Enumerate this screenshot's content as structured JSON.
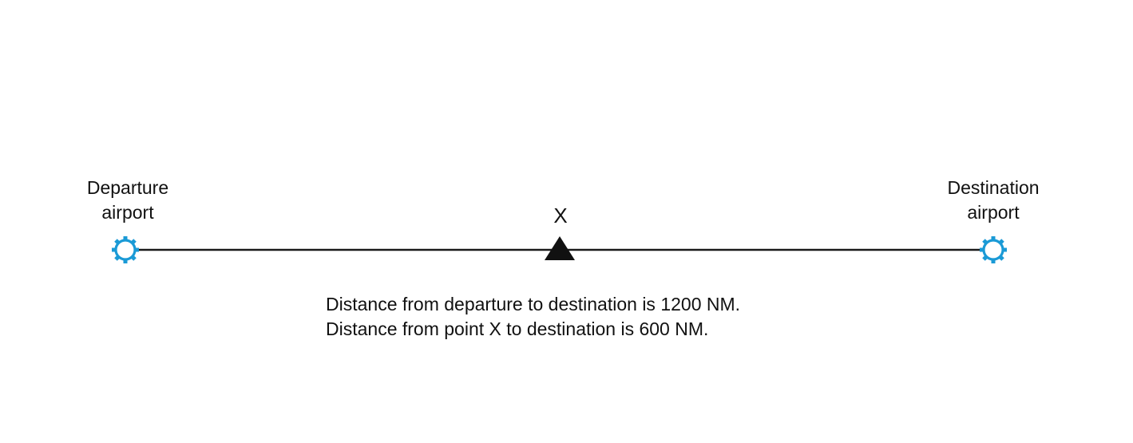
{
  "departure": {
    "line1": "Departure",
    "line2": "airport"
  },
  "destination": {
    "line1": "Destination",
    "line2": "airport"
  },
  "point": {
    "label": "X"
  },
  "notes": [
    "Distance from departure to destination is 1200 NM.",
    "Distance from point X to destination is 600 NM."
  ],
  "colors": {
    "airport": "#1a9ad6",
    "route_line": "#1a1a1a",
    "marker": "#111111",
    "text": "#111111"
  },
  "icons": {
    "departure_symbol": "airport-gear-icon",
    "destination_symbol": "airport-gear-icon",
    "point_symbol": "triangle-marker-icon"
  }
}
